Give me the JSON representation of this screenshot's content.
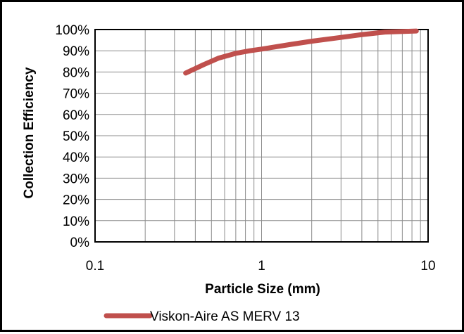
{
  "chart_data": {
    "type": "line",
    "xlabel": "Particle Size (mm)",
    "ylabel": "Collection Efficiency",
    "x_scale": "log",
    "xlim": [
      0.1,
      10
    ],
    "ylim": [
      0,
      100
    ],
    "x_tick_labels": [
      "0.1",
      "1",
      "10"
    ],
    "x_tick_values": [
      0.1,
      1,
      10
    ],
    "y_tick_labels": [
      "0%",
      "10%",
      "20%",
      "30%",
      "40%",
      "50%",
      "60%",
      "70%",
      "80%",
      "90%",
      "100%"
    ],
    "y_tick_values": [
      0,
      10,
      20,
      30,
      40,
      50,
      60,
      70,
      80,
      90,
      100
    ],
    "grid": true,
    "legend_position": "bottom",
    "series": [
      {
        "name": "Viskon-Aire AS MERV 13",
        "color": "#c0504d",
        "x": [
          0.35,
          0.45,
          0.55,
          0.7,
          0.85,
          1.0,
          1.5,
          2.0,
          3.0,
          4.0,
          5.5,
          8.5
        ],
        "y": [
          79.5,
          83.5,
          86.5,
          88.8,
          90.0,
          90.8,
          93.0,
          94.5,
          96.3,
          97.6,
          98.8,
          99.3
        ]
      }
    ]
  }
}
